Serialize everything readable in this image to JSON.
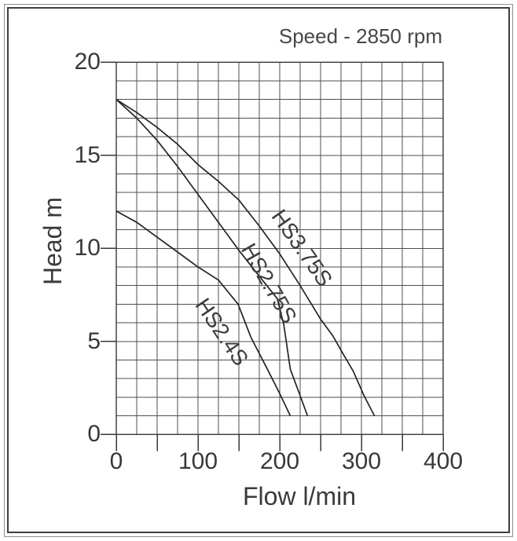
{
  "chart_data": {
    "type": "line",
    "title": "",
    "annotation": "Speed - 2850 rpm",
    "xlabel": "Flow l/min",
    "ylabel": "Head m",
    "xlim": [
      0,
      400
    ],
    "ylim": [
      0,
      20
    ],
    "grid": "on",
    "x_minor_step": 25,
    "y_minor_step": 1,
    "x_tick_step": 50,
    "y_tick_step": 5,
    "x_label_ticks": [
      "0",
      "100",
      "200",
      "300",
      "400"
    ],
    "x_label_tick_values": [
      0,
      100,
      200,
      300,
      400
    ],
    "y_label_ticks": [
      "0",
      "5",
      "10",
      "15",
      "20"
    ],
    "y_label_tick_values": [
      0,
      5,
      10,
      15,
      20
    ],
    "legend_position": "labels-on-curves",
    "series": [
      {
        "name": "HS3.75S",
        "points": [
          [
            0,
            18
          ],
          [
            25,
            17.3
          ],
          [
            50,
            16.5
          ],
          [
            75,
            15.6
          ],
          [
            100,
            14.5
          ],
          [
            125,
            13.6
          ],
          [
            150,
            12.6
          ],
          [
            175,
            11.2
          ],
          [
            200,
            9.7
          ],
          [
            225,
            8.0
          ],
          [
            250,
            6.2
          ],
          [
            265,
            5.3
          ],
          [
            278,
            4.3
          ],
          [
            290,
            3.4
          ],
          [
            303,
            2.1
          ],
          [
            316,
            1
          ]
        ]
      },
      {
        "name": "HS2.75S",
        "points": [
          [
            0,
            18
          ],
          [
            25,
            17.0
          ],
          [
            50,
            15.8
          ],
          [
            75,
            14.4
          ],
          [
            100,
            12.9
          ],
          [
            125,
            11.4
          ],
          [
            150,
            9.9
          ],
          [
            175,
            8.5
          ],
          [
            197,
            7.3
          ],
          [
            205,
            5.9
          ],
          [
            213,
            3.5
          ],
          [
            224,
            2.2
          ],
          [
            234,
            1
          ]
        ]
      },
      {
        "name": "HS2.4S",
        "points": [
          [
            0,
            12
          ],
          [
            25,
            11.4
          ],
          [
            50,
            10.6
          ],
          [
            75,
            9.8
          ],
          [
            100,
            9.0
          ],
          [
            125,
            8.3
          ],
          [
            149,
            7.0
          ],
          [
            165,
            5.2
          ],
          [
            185,
            3.5
          ],
          [
            200,
            2.2
          ],
          [
            213,
            1
          ]
        ]
      }
    ],
    "curve_labels": [
      {
        "text": "HS3.75S",
        "x": 227,
        "y": 10.0,
        "angle": 55
      },
      {
        "text": "HS2.75S",
        "x": 187,
        "y": 8.1,
        "angle": 60
      },
      {
        "text": "HS2.4S",
        "x": 129,
        "y": 5.5,
        "angle": 56
      }
    ]
  }
}
